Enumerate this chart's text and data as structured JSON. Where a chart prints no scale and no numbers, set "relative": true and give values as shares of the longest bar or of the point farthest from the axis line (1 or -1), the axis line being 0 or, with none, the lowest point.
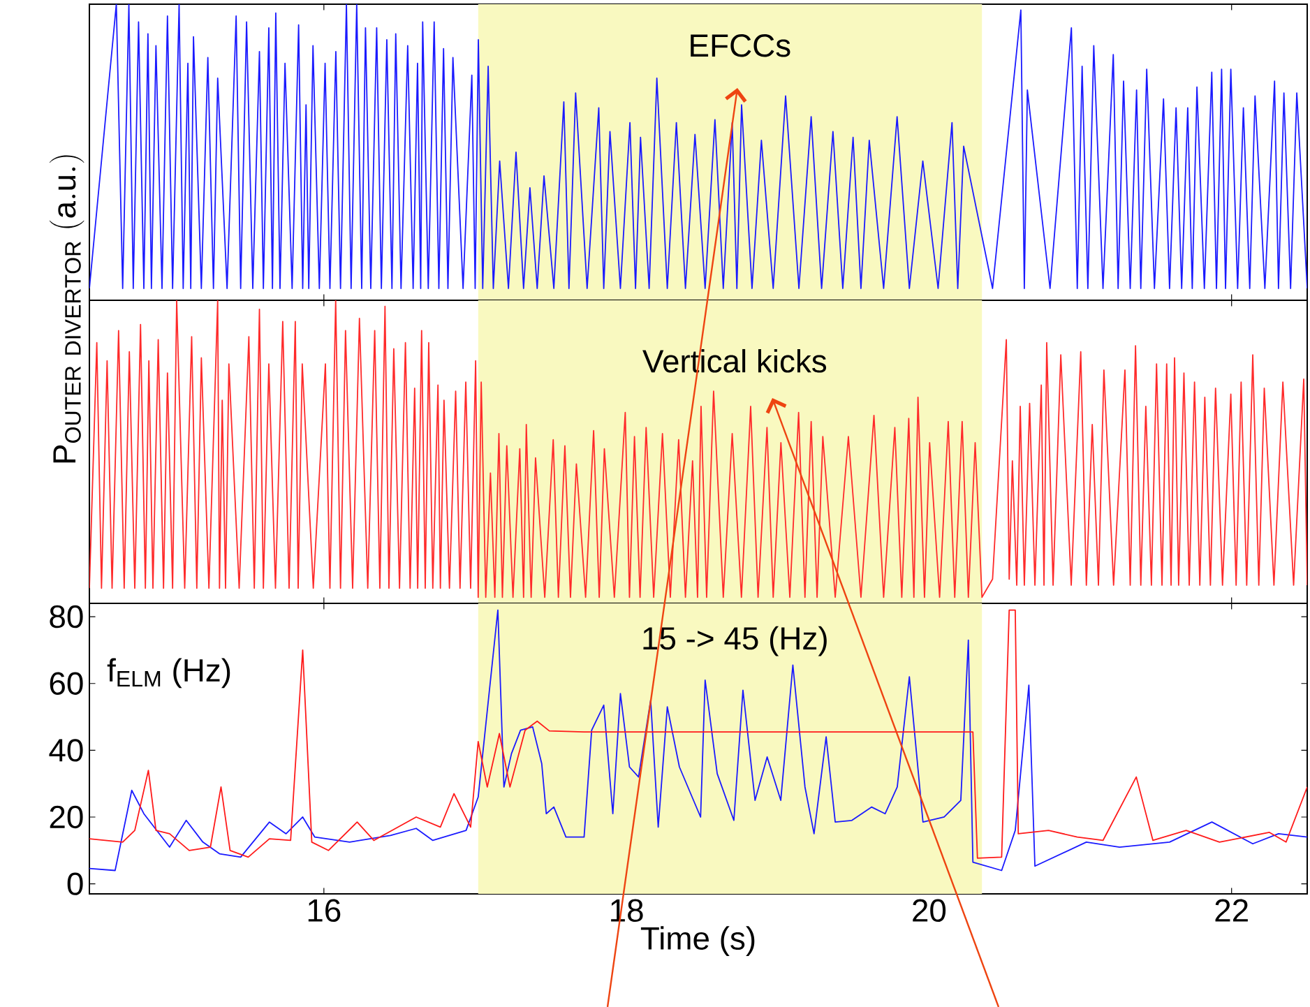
{
  "chart_data": [
    {
      "type": "line",
      "relative": true,
      "xlim": [
        14.45,
        22.5
      ],
      "xticks": [
        16,
        18,
        20,
        22
      ],
      "tick_labels": false,
      "marker": "none",
      "line_style": "solid",
      "ylabel": "\\mathrm{P_{OUTER\\ DIVERTOR}\\ (a.u.)}",
      "annotations": [
        "EFCCs"
      ],
      "bands": [
        {
          "axis": "x",
          "from": 17.02,
          "to": 20.35,
          "color": "#f9f9c0"
        }
      ],
      "series": [
        {
          "color": "#1a1aff",
          "x": [
            14.45,
            14.628,
            14.67,
            14.711,
            14.74,
            14.775,
            14.81,
            14.837,
            14.86,
            14.89,
            14.93,
            14.966,
            15.0,
            15.043,
            15.07,
            15.101,
            15.12,
            15.138,
            15.19,
            15.233,
            15.27,
            15.298,
            15.36,
            15.42,
            15.45,
            15.489,
            15.53,
            15.574,
            15.6,
            15.636,
            15.66,
            15.682,
            15.71,
            15.743,
            15.79,
            15.833,
            15.86,
            15.882,
            15.9,
            15.928,
            15.97,
            16.008,
            16.04,
            16.079,
            16.11,
            16.149,
            16.18,
            16.217,
            16.25,
            16.275,
            16.31,
            16.349,
            16.38,
            16.416,
            16.45,
            16.475,
            16.51,
            16.554,
            16.59,
            16.619,
            16.64,
            16.653,
            16.69,
            16.729,
            16.76,
            16.791,
            16.82,
            16.853,
            16.92,
            16.978,
            17.0,
            17.021,
            17.05,
            17.086,
            17.12,
            17.162,
            17.22,
            17.27,
            17.32,
            17.362,
            17.41,
            17.455,
            17.52,
            17.586,
            17.62,
            17.664,
            17.74,
            17.817,
            17.85,
            17.891,
            17.96,
            18.023,
            18.06,
            18.093,
            18.15,
            18.201,
            18.27,
            18.33,
            18.39,
            18.453,
            18.52,
            18.585,
            18.64,
            18.699,
            18.73,
            18.761,
            18.83,
            18.892,
            18.97,
            19.052,
            19.14,
            19.221,
            19.29,
            19.365,
            19.43,
            19.498,
            19.55,
            19.605,
            19.7,
            19.789,
            19.87,
            19.959,
            20.06,
            20.152,
            20.19,
            20.229,
            20.42,
            20.607,
            20.63,
            20.65,
            20.8,
            20.941,
            20.98,
            21.012,
            21.05,
            21.089,
            21.15,
            21.218,
            21.25,
            21.286,
            21.33,
            21.372,
            21.4,
            21.439,
            21.49,
            21.55,
            21.59,
            21.633,
            21.67,
            21.71,
            21.74,
            21.771,
            21.82,
            21.869,
            21.9,
            21.934,
            21.96,
            21.995,
            22.04,
            22.078,
            22.12,
            22.155,
            22.22,
            22.284,
            22.31,
            22.346,
            22.39,
            22.431,
            22.5
          ],
          "values": [
            0.04,
            1.0,
            0.04,
            1.0,
            0.04,
            0.94,
            0.04,
            0.9,
            0.04,
            0.86,
            0.04,
            0.96,
            0.04,
            1.0,
            0.04,
            0.8,
            0.04,
            0.89,
            0.04,
            0.82,
            0.04,
            0.75,
            0.04,
            0.96,
            0.04,
            0.94,
            0.04,
            0.84,
            0.04,
            0.92,
            0.04,
            0.97,
            0.04,
            0.8,
            0.04,
            0.93,
            0.04,
            0.66,
            0.04,
            0.86,
            0.04,
            0.8,
            0.04,
            0.84,
            0.04,
            1.0,
            0.04,
            1.0,
            0.04,
            0.92,
            0.04,
            0.92,
            0.04,
            0.88,
            0.04,
            0.9,
            0.04,
            0.86,
            0.04,
            0.8,
            0.04,
            0.94,
            0.04,
            0.94,
            0.04,
            0.85,
            0.04,
            0.82,
            0.04,
            0.76,
            0.04,
            0.88,
            0.04,
            0.79,
            0.04,
            0.47,
            0.04,
            0.5,
            0.04,
            0.38,
            0.04,
            0.42,
            0.04,
            0.67,
            0.04,
            0.7,
            0.04,
            0.65,
            0.04,
            0.57,
            0.04,
            0.6,
            0.04,
            0.55,
            0.04,
            0.75,
            0.04,
            0.6,
            0.04,
            0.56,
            0.04,
            0.61,
            0.04,
            0.6,
            0.04,
            0.66,
            0.04,
            0.54,
            0.04,
            0.69,
            0.04,
            0.62,
            0.04,
            0.57,
            0.04,
            0.55,
            0.04,
            0.54,
            0.04,
            0.62,
            0.04,
            0.47,
            0.04,
            0.6,
            0.04,
            0.52,
            0.04,
            0.98,
            0.04,
            0.71,
            0.04,
            0.92,
            0.04,
            0.79,
            0.04,
            0.86,
            0.04,
            0.83,
            0.04,
            0.74,
            0.04,
            0.71,
            0.04,
            0.78,
            0.04,
            0.68,
            0.04,
            0.65,
            0.04,
            0.65,
            0.04,
            0.72,
            0.04,
            0.77,
            0.04,
            0.78,
            0.04,
            0.78,
            0.04,
            0.65,
            0.04,
            0.69,
            0.04,
            0.74,
            0.04,
            0.7,
            0.04,
            0.7,
            0.04
          ]
        }
      ]
    },
    {
      "type": "line",
      "relative": true,
      "xlim": [
        14.45,
        22.5
      ],
      "xticks": [
        16,
        18,
        20,
        22
      ],
      "tick_labels": false,
      "marker": "none",
      "line_style": "solid",
      "annotations": [
        "Vertical kicks"
      ],
      "bands": [
        {
          "axis": "x",
          "from": 17.02,
          "to": 20.35,
          "color": "#f9f9c0"
        }
      ],
      "series": [
        {
          "color": "#ff2a2a",
          "x": [
            14.45,
            14.499,
            14.53,
            14.567,
            14.6,
            14.643,
            14.68,
            14.714,
            14.75,
            14.788,
            14.82,
            14.843,
            14.87,
            14.905,
            14.94,
            14.966,
            15.0,
            15.027,
            15.08,
            15.126,
            15.16,
            15.19,
            15.24,
            15.298,
            15.31,
            15.328,
            15.35,
            15.372,
            15.44,
            15.504,
            15.54,
            15.574,
            15.6,
            15.636,
            15.68,
            15.728,
            15.77,
            15.811,
            15.83,
            15.857,
            15.93,
            16.01,
            16.04,
            16.078,
            16.11,
            16.143,
            16.19,
            16.235,
            16.29,
            16.336,
            16.37,
            16.404,
            16.43,
            16.462,
            16.5,
            16.539,
            16.57,
            16.6,
            16.62,
            16.646,
            16.67,
            16.693,
            16.72,
            16.754,
            16.77,
            16.794,
            16.83,
            16.871,
            16.9,
            16.938,
            16.97,
            17.003,
            17.02,
            17.04,
            17.07,
            17.101,
            17.13,
            17.157,
            17.18,
            17.209,
            17.25,
            17.295,
            17.32,
            17.338,
            17.37,
            17.399,
            17.46,
            17.516,
            17.55,
            17.593,
            17.63,
            17.669,
            17.73,
            17.783,
            17.82,
            17.854,
            17.92,
            17.992,
            18.02,
            18.053,
            18.09,
            18.13,
            18.18,
            18.238,
            18.29,
            18.345,
            18.39,
            18.437,
            18.47,
            18.493,
            18.53,
            18.576,
            18.64,
            18.699,
            18.76,
            18.821,
            18.87,
            18.929,
            18.97,
            19.021,
            19.08,
            19.138,
            19.18,
            19.221,
            19.26,
            19.298,
            19.38,
            19.467,
            19.55,
            19.636,
            19.7,
            19.774,
            19.82,
            19.866,
            19.9,
            19.927,
            19.97,
            20.004,
            20.07,
            20.127,
            20.17,
            20.219,
            20.26,
            20.305,
            20.35,
            20.42,
            20.511,
            20.53,
            20.551,
            20.58,
            20.603,
            20.63,
            20.665,
            20.7,
            20.742,
            20.76,
            20.778,
            20.82,
            20.871,
            20.94,
            21.003,
            21.04,
            21.079,
            21.12,
            21.156,
            21.22,
            21.295,
            21.33,
            21.365,
            21.4,
            21.433,
            21.47,
            21.504,
            21.54,
            21.571,
            21.6,
            21.623,
            21.65,
            21.685,
            21.72,
            21.755,
            21.79,
            21.823,
            21.86,
            21.894,
            21.94,
            21.995,
            22.03,
            22.063,
            22.1,
            22.14,
            22.18,
            22.216,
            22.28,
            22.339,
            22.41,
            22.477,
            22.5
          ],
          "values": [
            0.05,
            0.86,
            0.05,
            0.8,
            0.05,
            0.9,
            0.05,
            0.83,
            0.05,
            0.92,
            0.05,
            0.8,
            0.05,
            0.87,
            0.05,
            0.76,
            0.05,
            1.0,
            0.05,
            0.88,
            0.05,
            0.81,
            0.05,
            1.0,
            0.05,
            0.67,
            0.05,
            0.79,
            0.05,
            0.88,
            0.05,
            0.97,
            0.05,
            0.79,
            0.05,
            0.93,
            0.05,
            0.93,
            0.05,
            0.79,
            0.05,
            0.79,
            0.05,
            1.0,
            0.05,
            0.9,
            0.05,
            0.94,
            0.05,
            0.9,
            0.05,
            0.98,
            0.05,
            0.84,
            0.05,
            0.86,
            0.05,
            0.71,
            0.05,
            0.9,
            0.05,
            0.86,
            0.05,
            0.72,
            0.05,
            0.67,
            0.05,
            0.7,
            0.05,
            0.73,
            0.05,
            0.8,
            0.02,
            0.73,
            0.02,
            0.43,
            0.02,
            0.56,
            0.02,
            0.52,
            0.02,
            0.51,
            0.02,
            0.59,
            0.02,
            0.48,
            0.02,
            0.54,
            0.02,
            0.52,
            0.02,
            0.46,
            0.02,
            0.57,
            0.02,
            0.51,
            0.02,
            0.63,
            0.02,
            0.55,
            0.02,
            0.58,
            0.02,
            0.56,
            0.02,
            0.54,
            0.02,
            0.47,
            0.02,
            0.65,
            0.02,
            0.7,
            0.02,
            0.56,
            0.02,
            0.65,
            0.02,
            0.58,
            0.02,
            0.53,
            0.02,
            0.63,
            0.02,
            0.6,
            0.02,
            0.55,
            0.02,
            0.55,
            0.02,
            0.62,
            0.02,
            0.58,
            0.02,
            0.61,
            0.02,
            0.68,
            0.02,
            0.53,
            0.02,
            0.6,
            0.02,
            0.6,
            0.02,
            0.53,
            0.02,
            0.08,
            0.87,
            0.08,
            0.47,
            0.06,
            0.65,
            0.06,
            0.66,
            0.06,
            0.72,
            0.06,
            0.86,
            0.06,
            0.82,
            0.06,
            0.83,
            0.06,
            0.59,
            0.06,
            0.77,
            0.06,
            0.77,
            0.06,
            0.85,
            0.06,
            0.65,
            0.06,
            0.79,
            0.06,
            0.79,
            0.06,
            0.81,
            0.06,
            0.76,
            0.06,
            0.73,
            0.06,
            0.68,
            0.06,
            0.71,
            0.06,
            0.69,
            0.06,
            0.73,
            0.06,
            0.82,
            0.06,
            0.71,
            0.06,
            0.73,
            0.06,
            0.74,
            0.06
          ]
        }
      ]
    },
    {
      "type": "line",
      "xlim": [
        14.45,
        22.5
      ],
      "xticks": [
        16,
        18,
        20,
        22
      ],
      "ylim": [
        -3,
        84
      ],
      "yticks": [
        0,
        20,
        40,
        60,
        80
      ],
      "marker": "none",
      "line_style": "solid",
      "xlabel": "Time (s)",
      "annotations": [
        "f$_{ELM}$ (Hz)",
        "15 -> 45 (Hz)"
      ],
      "bands": [
        {
          "axis": "x",
          "from": 17.02,
          "to": 20.35,
          "color": "#f9f9c0"
        }
      ],
      "series": [
        {
          "color": "#1a1aff",
          "x": [
            14.45,
            14.62,
            14.73,
            14.81,
            14.98,
            15.09,
            15.2,
            15.31,
            15.45,
            15.64,
            15.75,
            15.86,
            15.94,
            16.17,
            16.44,
            16.61,
            16.72,
            16.94,
            17.02,
            17.15,
            17.19,
            17.24,
            17.3,
            17.38,
            17.44,
            17.47,
            17.52,
            17.6,
            17.72,
            17.77,
            17.85,
            17.91,
            17.96,
            18.02,
            18.08,
            18.16,
            18.21,
            18.27,
            18.35,
            18.49,
            18.52,
            18.6,
            18.71,
            18.77,
            18.85,
            18.93,
            19.02,
            19.1,
            19.18,
            19.24,
            19.32,
            19.38,
            19.49,
            19.62,
            19.71,
            19.79,
            19.87,
            19.96,
            20.1,
            20.21,
            20.26,
            20.29,
            20.48,
            20.57,
            20.66,
            20.7,
            21.04,
            21.26,
            21.59,
            21.87,
            22.14,
            22.31,
            22.5
          ],
          "values": [
            4.6,
            4,
            28,
            21,
            11,
            19,
            12.5,
            9,
            8,
            18.5,
            15,
            20,
            14,
            12.5,
            14.5,
            16.6,
            13,
            16,
            26,
            82,
            29,
            39,
            46,
            47,
            36,
            21,
            23,
            14,
            14,
            46,
            53.5,
            21,
            57,
            35,
            32,
            55,
            17,
            53,
            35,
            20,
            61,
            33,
            19,
            58,
            25,
            38,
            25,
            65.5,
            29,
            15,
            44,
            18.5,
            19,
            23,
            21,
            29,
            62,
            18.5,
            20,
            25,
            73,
            6.5,
            4,
            16,
            59.5,
            5.3,
            12.5,
            11,
            12.5,
            18.5,
            12,
            15,
            14
          ]
        },
        {
          "color": "#ff1a1a",
          "x": [
            14.45,
            14.67,
            14.75,
            14.84,
            14.89,
            14.98,
            15.11,
            15.25,
            15.32,
            15.38,
            15.5,
            15.64,
            15.78,
            15.86,
            15.92,
            16.03,
            16.22,
            16.33,
            16.61,
            16.77,
            16.86,
            16.97,
            17.02,
            17.08,
            17.16,
            17.23,
            17.33,
            17.41,
            17.49,
            17.72,
            20.29,
            20.32,
            20.48,
            20.53,
            20.57,
            20.59,
            20.79,
            20.98,
            21.15,
            21.37,
            21.48,
            21.7,
            21.92,
            22.25,
            22.36,
            22.5
          ],
          "values": [
            13.5,
            12.5,
            16,
            34,
            16,
            15,
            10,
            11,
            29,
            10,
            8,
            13.5,
            13,
            70,
            12.5,
            10,
            18.5,
            13,
            20,
            17,
            27,
            17,
            42.6,
            29,
            45,
            29,
            46,
            48.7,
            45.8,
            45.5,
            45.5,
            7.7,
            8,
            82,
            82,
            15,
            16,
            14,
            13,
            32,
            13,
            16,
            12.5,
            15.4,
            12.5,
            29
          ]
        }
      ]
    }
  ]
}
